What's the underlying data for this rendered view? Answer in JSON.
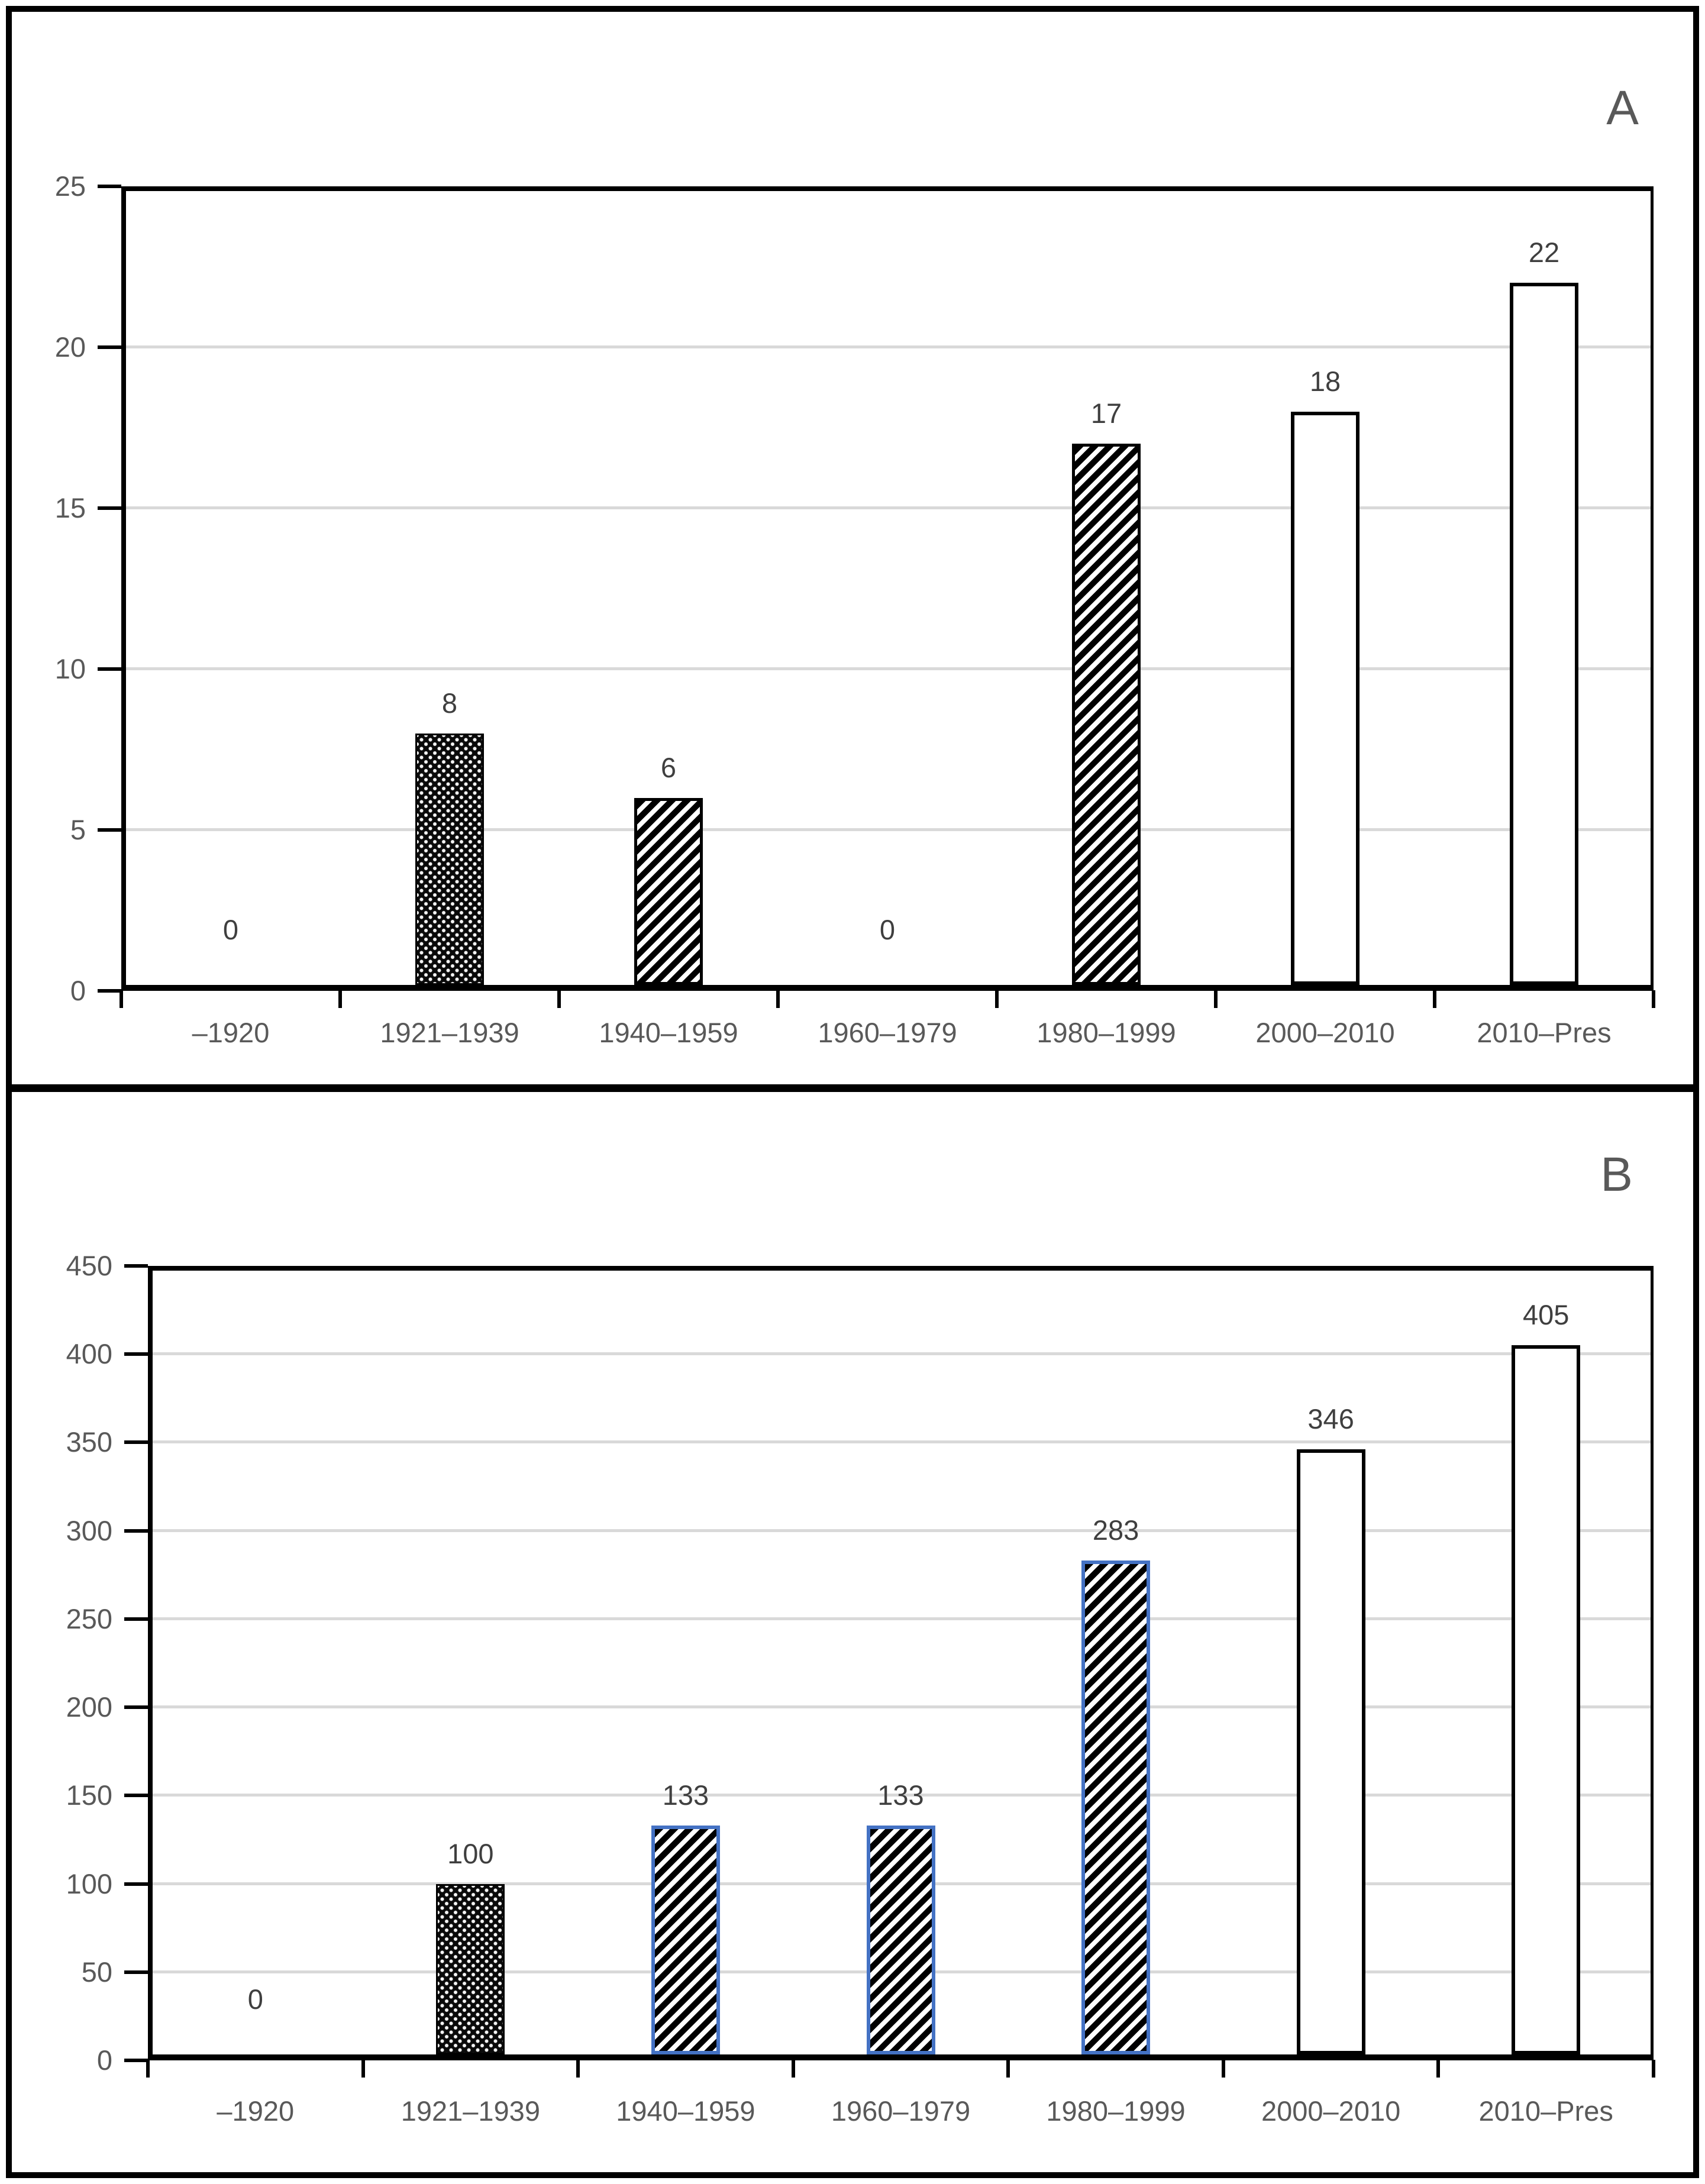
{
  "figure": {
    "panels": [
      {
        "label": "A"
      },
      {
        "label": "B"
      }
    ]
  },
  "colors": {
    "axis": "#000000",
    "gridline": "#d9d9d9",
    "tick_label": "#595959",
    "data_label": "#3f3f3f",
    "panel_letter": "#595959",
    "hatch_border_blue": "#4472C4",
    "outline_bar_fill": "#ffffff"
  },
  "chart_data": [
    {
      "type": "bar",
      "panel_label": "A",
      "title": "",
      "xlabel": "",
      "ylabel": "",
      "categories": [
        "–1920",
        "1921–1939",
        "1940–1959",
        "1960–1979",
        "1980–1999",
        "2000–2010",
        "2010–Pres"
      ],
      "values": [
        0,
        8,
        6,
        0,
        17,
        18,
        22
      ],
      "data_labels": [
        "0",
        "8",
        "6",
        "0",
        "17",
        "18",
        "22"
      ],
      "bar_styles": [
        "none",
        "dots",
        "hatch-black",
        "none",
        "hatch-black",
        "outline",
        "outline"
      ],
      "ylim": [
        0,
        25
      ],
      "ytick_step": 5,
      "ytick_labels": [
        "0",
        "5",
        "10",
        "15",
        "20",
        "25"
      ],
      "grid": true,
      "legend": false
    },
    {
      "type": "bar",
      "panel_label": "B",
      "title": "",
      "xlabel": "",
      "ylabel": "",
      "categories": [
        "–1920",
        "1921–1939",
        "1940–1959",
        "1960–1979",
        "1980–1999",
        "2000–2010",
        "2010–Pres"
      ],
      "values": [
        0,
        100,
        133,
        133,
        283,
        346,
        405
      ],
      "data_labels": [
        "0",
        "100",
        "133",
        "133",
        "283",
        "346",
        "405"
      ],
      "bar_styles": [
        "none",
        "dots",
        "hatch-blue",
        "hatch-blue",
        "hatch-blue",
        "outline",
        "outline"
      ],
      "ylim": [
        0,
        450
      ],
      "ytick_step": 50,
      "ytick_labels": [
        "0",
        "50",
        "100",
        "150",
        "200",
        "250",
        "300",
        "350",
        "400",
        "450"
      ],
      "grid": true,
      "legend": false
    }
  ]
}
